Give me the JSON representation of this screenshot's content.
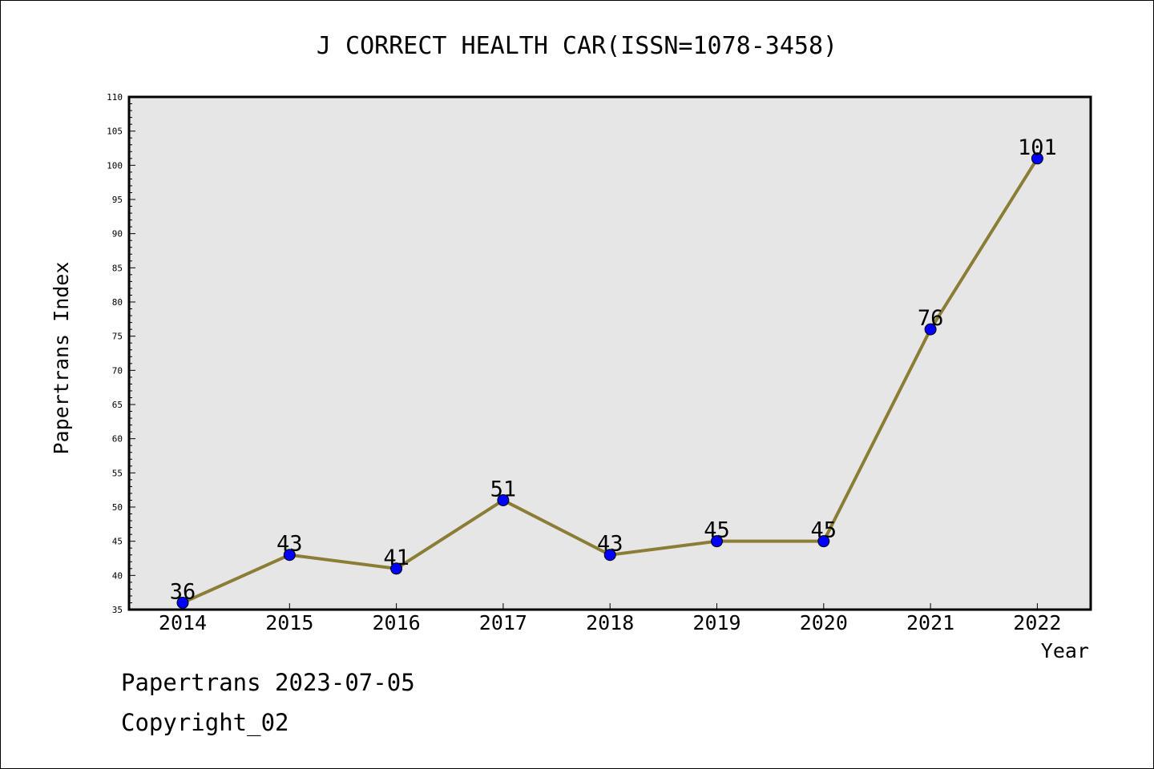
{
  "chart_data": {
    "type": "line",
    "title": "J CORRECT HEALTH CAR(ISSN=1078-3458)",
    "xlabel": "Year",
    "ylabel": "Papertrans Index",
    "categories": [
      "2014",
      "2015",
      "2016",
      "2017",
      "2018",
      "2019",
      "2020",
      "2021",
      "2022"
    ],
    "series": [
      {
        "values": [
          36,
          43,
          41,
          51,
          43,
          45,
          45,
          76,
          101
        ]
      }
    ],
    "data_labels": [
      "36",
      "43",
      "41",
      "51",
      "43",
      "45",
      "45",
      "76",
      "101"
    ],
    "ylim": [
      35,
      110
    ],
    "y_major_ticks": [
      "35",
      "40",
      "45",
      "50",
      "55",
      "60",
      "65",
      "70",
      "75",
      "80",
      "85",
      "90",
      "95",
      "100",
      "105",
      "110"
    ],
    "grid": false,
    "colors": {
      "plot_background": "#e6e6e6",
      "line": "#8b7d35",
      "marker": "#0000ff"
    }
  },
  "footer": {
    "line1": "Papertrans 2023-07-05",
    "line2": "Copyright_02"
  }
}
